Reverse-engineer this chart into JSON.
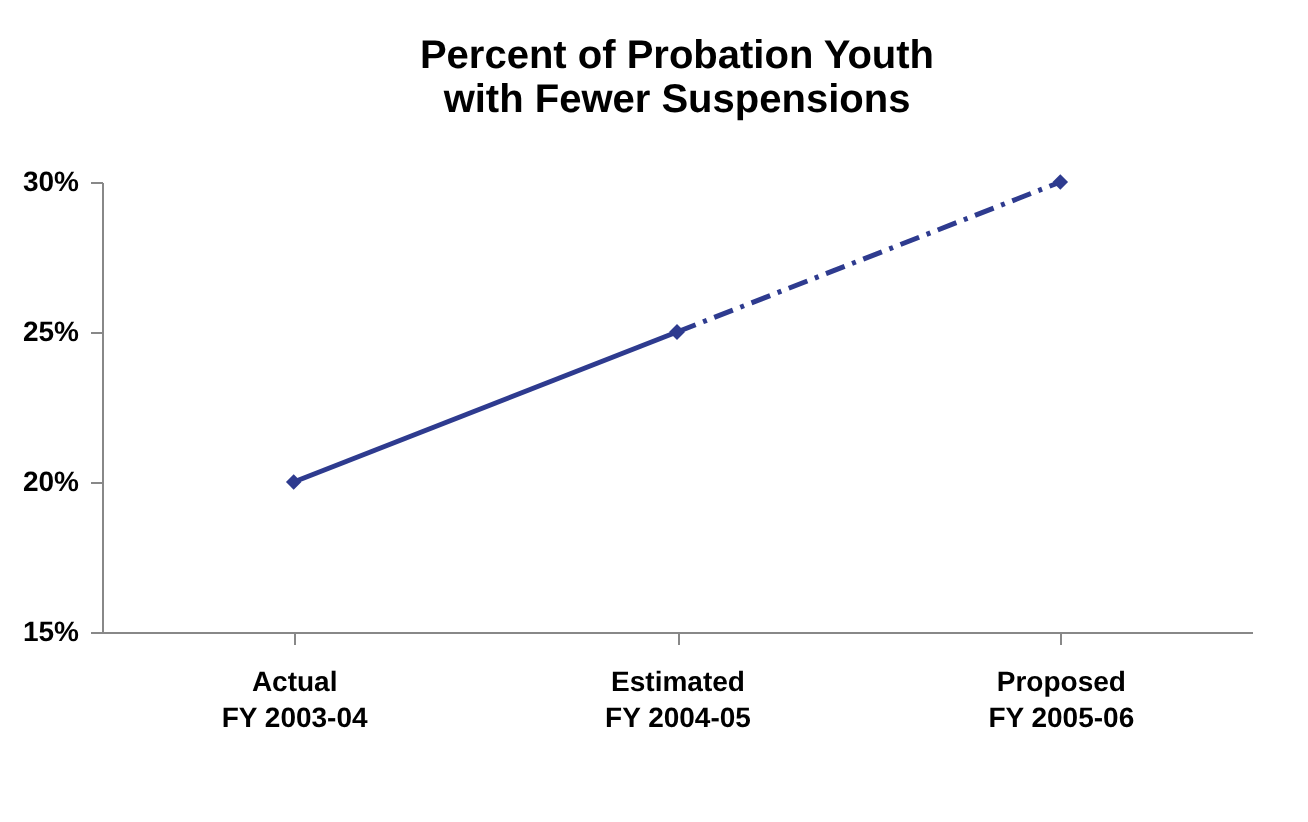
{
  "chart_data": {
    "type": "line",
    "title": [
      "Percent of Probation Youth",
      "with Fewer Suspensions"
    ],
    "categories": [
      "Actual\nFY 2003-04",
      "Estimated\nFY 2004-05",
      "Proposed\nFY 2005-06"
    ],
    "series": [
      {
        "color": "#2e3b8f",
        "values": [
          20,
          25,
          null
        ],
        "line_style": "solid"
      },
      {
        "color": "#2e3b8f",
        "values": [
          null,
          25,
          30
        ],
        "line_style": "dashed"
      }
    ],
    "ylim": [
      15,
      30
    ],
    "yticks": [
      {
        "value": 15,
        "label": "15%"
      },
      {
        "value": 20,
        "label": "20%"
      },
      {
        "value": 25,
        "label": "25%"
      },
      {
        "value": 30,
        "label": "30%"
      }
    ],
    "marker": "diamond"
  }
}
